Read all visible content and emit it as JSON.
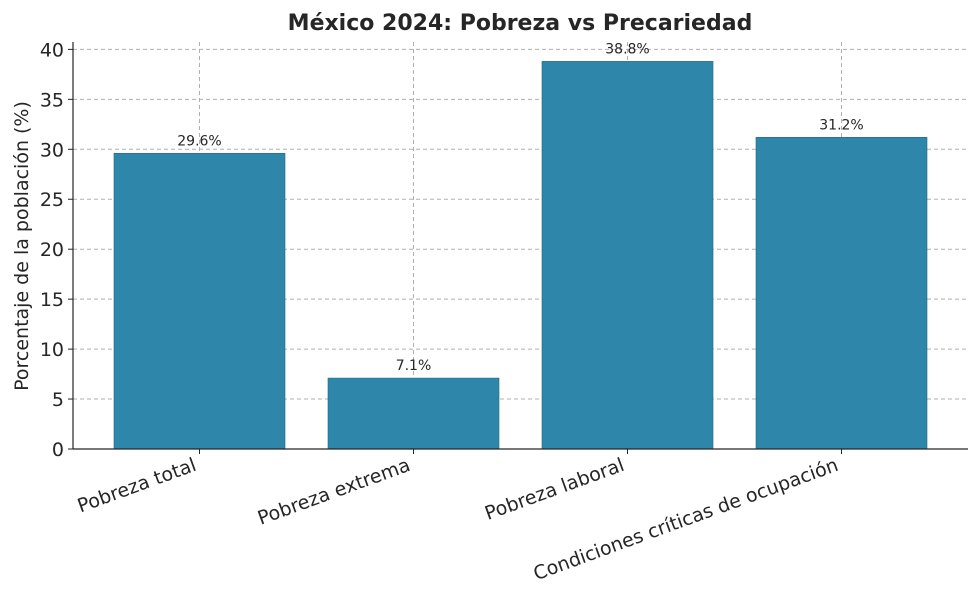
{
  "chart_data": {
    "type": "bar",
    "title": "México 2024: Pobreza vs Precariedad",
    "xlabel": "",
    "ylabel": "Porcentaje de la población (%)",
    "categories": [
      "Pobreza total",
      "Pobreza extrema",
      "Pobreza laboral",
      "Condiciones críticas de ocupación"
    ],
    "values": [
      29.6,
      7.1,
      38.8,
      31.2
    ],
    "data_labels": [
      "29.6%",
      "7.1%",
      "38.8%",
      "31.2%"
    ],
    "yticks": [
      0,
      5,
      10,
      15,
      20,
      25,
      30,
      35,
      40
    ],
    "ylim": [
      0,
      40.74
    ],
    "grid": true,
    "bar_color": "#2e86ab"
  }
}
